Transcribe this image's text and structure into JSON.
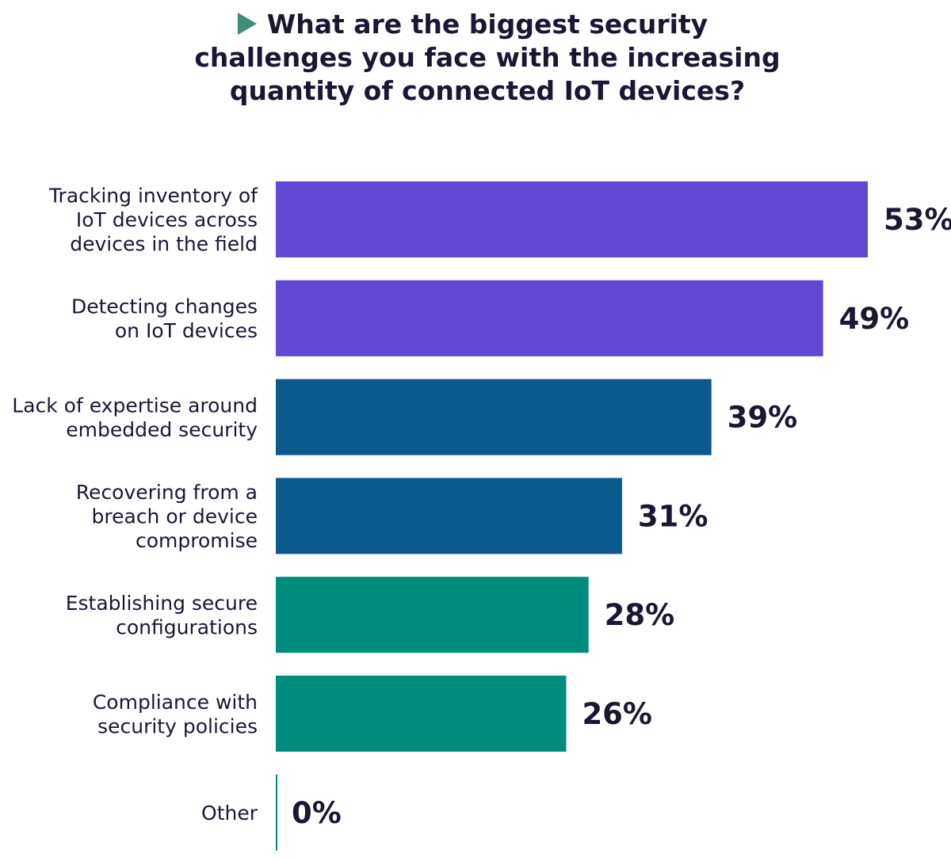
{
  "chart_data": {
    "type": "bar",
    "orientation": "horizontal",
    "title_lines": [
      "What are the biggest security",
      "challenges you face with the increasing",
      "quantity of connected IoT devices?"
    ],
    "categories": [
      [
        "Tracking inventory of",
        "IoT devices across",
        "devices in the field"
      ],
      [
        "Detecting changes",
        "on IoT devices"
      ],
      [
        "Lack of expertise around",
        "embedded security"
      ],
      [
        "Recovering from a",
        "breach or device",
        "compromise"
      ],
      [
        "Establishing secure",
        "configurations"
      ],
      [
        "Compliance with",
        "security policies"
      ],
      [
        "Other"
      ]
    ],
    "values": [
      53,
      49,
      39,
      31,
      28,
      26,
      0
    ],
    "value_labels": [
      "53%",
      "49%",
      "39%",
      "31%",
      "28%",
      "26%",
      "0%"
    ],
    "bar_colors": [
      "#6248d3",
      "#6248d3",
      "#0a5a8e",
      "#0a5a8e",
      "#008c7c",
      "#008c7c",
      "#008c7c"
    ],
    "accent_color": "#3f8c7a",
    "axis_color": "#008c7c",
    "xlim": [
      0,
      53
    ],
    "grid": false,
    "legend": "none"
  }
}
